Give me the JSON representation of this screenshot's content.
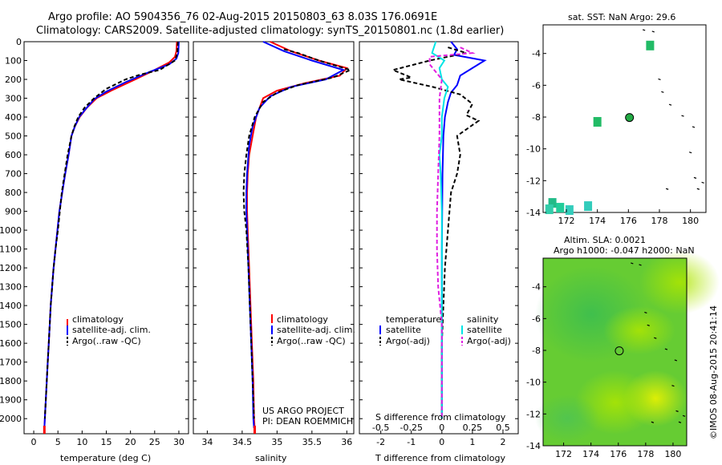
{
  "header": {
    "title_line1": "Argo profile: AO 5904356_76 02-Aug-2015 20150803_63 8.03S 176.0691E",
    "title_line2": "Climatology: CARS2009. Satellite-adjusted climatology: synTS_20150801.nc (1.8d earlier)"
  },
  "colors": {
    "climatology": "#ff0000",
    "satellite_adj": "#0000ff",
    "argo": "#000000",
    "salinity_satellite": "#00e5e5",
    "salinity_argo": "#e020e0"
  },
  "chart_data": [
    {
      "id": "temperature",
      "type": "line",
      "xlabel": "temperature (deg C)",
      "ylabel": "",
      "xlim": [
        -2,
        32
      ],
      "ylim": [
        2080,
        0
      ],
      "xticks": [
        0,
        5,
        10,
        15,
        20,
        25,
        30
      ],
      "yticks": [
        0,
        100,
        200,
        300,
        400,
        500,
        600,
        700,
        800,
        900,
        1000,
        1100,
        1200,
        1300,
        1400,
        1500,
        1600,
        1700,
        1800,
        1900,
        2000
      ],
      "legend": [
        "climatology",
        "satellite-adj. clim.",
        "Argo(..raw -QC)"
      ],
      "series": [
        {
          "name": "climatology",
          "color": "#ff0000",
          "dash": false,
          "points": [
            [
              29.6,
              0
            ],
            [
              29.5,
              50
            ],
            [
              29.2,
              80
            ],
            [
              28,
              110
            ],
            [
              25,
              150
            ],
            [
              21,
              200
            ],
            [
              16,
              260
            ],
            [
              13,
              300
            ],
            [
              11,
              350
            ],
            [
              9.5,
              400
            ],
            [
              8.5,
              450
            ],
            [
              7.8,
              500
            ],
            [
              7.2,
              600
            ],
            [
              6.5,
              700
            ],
            [
              5.9,
              800
            ],
            [
              5.3,
              900
            ],
            [
              4.9,
              1000
            ],
            [
              4.5,
              1100
            ],
            [
              4.1,
              1200
            ],
            [
              3.8,
              1300
            ],
            [
              3.5,
              1400
            ],
            [
              3.3,
              1500
            ],
            [
              3.1,
              1600
            ],
            [
              2.9,
              1700
            ],
            [
              2.7,
              1800
            ],
            [
              2.5,
              1900
            ],
            [
              2.3,
              2000
            ],
            [
              2.2,
              2050
            ]
          ]
        },
        {
          "name": "satellite-adj. clim.",
          "color": "#0000ff",
          "dash": false,
          "points": [
            [
              30,
              0
            ],
            [
              29.9,
              60
            ],
            [
              29.5,
              90
            ],
            [
              28,
              120
            ],
            [
              24,
              160
            ],
            [
              19,
              215
            ],
            [
              15,
              265
            ],
            [
              12.5,
              305
            ],
            [
              10.8,
              355
            ],
            [
              9.4,
              400
            ],
            [
              8.5,
              450
            ],
            [
              7.8,
              500
            ],
            [
              7.2,
              600
            ],
            [
              6.5,
              700
            ],
            [
              5.9,
              800
            ],
            [
              5.3,
              900
            ],
            [
              4.9,
              1000
            ],
            [
              4.5,
              1100
            ],
            [
              4.1,
              1200
            ],
            [
              3.8,
              1300
            ],
            [
              3.5,
              1400
            ],
            [
              3.3,
              1500
            ],
            [
              3.1,
              1600
            ],
            [
              2.9,
              1700
            ],
            [
              2.7,
              1800
            ],
            [
              2.5,
              1900
            ],
            [
              2.3,
              2000
            ],
            [
              2.2,
              2050
            ]
          ]
        },
        {
          "name": "Argo(..raw -QC)",
          "color": "#000000",
          "dash": true,
          "points": [
            [
              29.8,
              0
            ],
            [
              29.7,
              60
            ],
            [
              29.2,
              100
            ],
            [
              26,
              150
            ],
            [
              22,
              175
            ],
            [
              19,
              200
            ],
            [
              15,
              250
            ],
            [
              12.5,
              300
            ],
            [
              10.5,
              350
            ],
            [
              9.2,
              400
            ],
            [
              8.4,
              450
            ],
            [
              7.8,
              500
            ],
            [
              7.0,
              600
            ],
            [
              6.4,
              700
            ],
            [
              5.8,
              800
            ],
            [
              5.4,
              900
            ],
            [
              5.0,
              1000
            ],
            [
              4.5,
              1100
            ],
            [
              4.1,
              1200
            ],
            [
              3.8,
              1300
            ],
            [
              3.5,
              1400
            ],
            [
              3.3,
              1500
            ],
            [
              3.1,
              1600
            ],
            [
              2.9,
              1700
            ],
            [
              2.7,
              1800
            ],
            [
              2.5,
              1900
            ],
            [
              2.3,
              2000
            ]
          ]
        }
      ]
    },
    {
      "id": "salinity",
      "type": "line",
      "xlabel": "salinity",
      "ylabel": "",
      "xlim": [
        33.8,
        36.1
      ],
      "ylim": [
        2080,
        0
      ],
      "xticks": [
        34,
        34.5,
        35,
        35.5,
        36
      ],
      "xticklabels": [
        "34",
        "34.5",
        "35",
        "35.5",
        "36"
      ],
      "legend": [
        "climatology",
        "satellite-adj. clim.",
        "Argo(..raw -QC)"
      ],
      "annotation": [
        "US ARGO PROJECT",
        "PI: DEAN ROEMMICH"
      ],
      "series": [
        {
          "name": "climatology",
          "color": "#ff0000",
          "dash": false,
          "points": [
            [
              34.9,
              0
            ],
            [
              35.2,
              50
            ],
            [
              35.6,
              100
            ],
            [
              36.0,
              140
            ],
            [
              35.9,
              180
            ],
            [
              35.4,
              220
            ],
            [
              35.0,
              260
            ],
            [
              34.8,
              300
            ],
            [
              34.7,
              400
            ],
            [
              34.65,
              500
            ],
            [
              34.6,
              600
            ],
            [
              34.58,
              700
            ],
            [
              34.57,
              800
            ],
            [
              34.57,
              900
            ],
            [
              34.58,
              1000
            ],
            [
              34.6,
              1200
            ],
            [
              34.62,
              1400
            ],
            [
              34.64,
              1600
            ],
            [
              34.66,
              1800
            ],
            [
              34.67,
              2000
            ],
            [
              34.68,
              2050
            ]
          ]
        },
        {
          "name": "satellite-adj. clim.",
          "color": "#0000ff",
          "dash": false,
          "points": [
            [
              34.8,
              0
            ],
            [
              35.1,
              50
            ],
            [
              35.5,
              100
            ],
            [
              35.95,
              150
            ],
            [
              35.7,
              200
            ],
            [
              35.2,
              240
            ],
            [
              34.9,
              290
            ],
            [
              34.75,
              350
            ],
            [
              34.65,
              450
            ],
            [
              34.6,
              550
            ],
            [
              34.57,
              700
            ],
            [
              34.56,
              800
            ],
            [
              34.56,
              900
            ],
            [
              34.57,
              1000
            ],
            [
              34.59,
              1200
            ],
            [
              34.61,
              1400
            ],
            [
              34.63,
              1600
            ],
            [
              34.65,
              1800
            ],
            [
              34.66,
              2000
            ],
            [
              34.67,
              2050
            ]
          ]
        },
        {
          "name": "Argo(..raw -QC)",
          "color": "#000000",
          "dash": true,
          "points": [
            [
              35.1,
              40
            ],
            [
              35.3,
              60
            ],
            [
              35.6,
              100
            ],
            [
              36.05,
              150
            ],
            [
              35.8,
              190
            ],
            [
              35.3,
              230
            ],
            [
              35.0,
              270
            ],
            [
              34.8,
              320
            ],
            [
              34.68,
              400
            ],
            [
              34.6,
              500
            ],
            [
              34.56,
              600
            ],
            [
              34.53,
              700
            ],
            [
              34.52,
              800
            ],
            [
              34.53,
              900
            ],
            [
              34.56,
              1000
            ],
            [
              34.59,
              1200
            ],
            [
              34.61,
              1400
            ],
            [
              34.63,
              1600
            ],
            [
              34.65,
              1800
            ],
            [
              34.67,
              2000
            ]
          ]
        }
      ]
    },
    {
      "id": "difference",
      "type": "line",
      "xlabel": "T difference from climatology",
      "xlabel_top": "S difference from climatology",
      "xlim": [
        -2.7,
        2.5
      ],
      "ylim": [
        2080,
        0
      ],
      "xticks": [
        -2,
        -1,
        0,
        1,
        2
      ],
      "xticks_top": [
        -0.5,
        -0.25,
        0,
        0.25,
        0.5
      ],
      "xticklabels_top": [
        "-0.5",
        "-0.25",
        "0",
        "0.25",
        "0.5"
      ],
      "legend_temperature": [
        "temperature",
        "satellite",
        "Argo(-adj)"
      ],
      "legend_salinity": [
        "salinity",
        "satellite",
        "Argo(-adj)"
      ],
      "series": [
        {
          "name": "satellite",
          "color": "#0000ff",
          "dash": false,
          "axis": "T",
          "points": [
            [
              0.3,
              0
            ],
            [
              0.5,
              40
            ],
            [
              0.4,
              70
            ],
            [
              1.4,
              100
            ],
            [
              1.0,
              140
            ],
            [
              0.6,
              180
            ],
            [
              0.5,
              230
            ],
            [
              0.3,
              270
            ],
            [
              0.2,
              320
            ],
            [
              0.1,
              400
            ],
            [
              0.05,
              500
            ],
            [
              0.02,
              700
            ],
            [
              0.01,
              900
            ],
            [
              0,
              1100
            ],
            [
              0,
              1500
            ],
            [
              0,
              2000
            ]
          ]
        },
        {
          "name": "Argo(-adj)",
          "color": "#000000",
          "dash": true,
          "axis": "T",
          "points": [
            [
              0.2,
              30
            ],
            [
              0.8,
              60
            ],
            [
              -0.4,
              100
            ],
            [
              -1.6,
              150
            ],
            [
              -1.0,
              190
            ],
            [
              -1.4,
              200
            ],
            [
              -0.3,
              240
            ],
            [
              0.6,
              280
            ],
            [
              1.0,
              330
            ],
            [
              0.8,
              390
            ],
            [
              1.2,
              420
            ],
            [
              0.5,
              500
            ],
            [
              0.6,
              600
            ],
            [
              0.5,
              700
            ],
            [
              0.3,
              800
            ],
            [
              0.2,
              1000
            ],
            [
              0.1,
              1200
            ],
            [
              0.05,
              1400
            ],
            [
              0,
              1600
            ],
            [
              0,
              2000
            ]
          ]
        },
        {
          "name": "satellite",
          "color": "#00e5e5",
          "dash": false,
          "axis": "S",
          "points": [
            [
              -0.05,
              0
            ],
            [
              -0.08,
              60
            ],
            [
              0.02,
              100
            ],
            [
              -0.02,
              140
            ],
            [
              0,
              200
            ],
            [
              0.05,
              240
            ],
            [
              0.02,
              300
            ],
            [
              0,
              400
            ],
            [
              0,
              500
            ],
            [
              -0.02,
              600
            ],
            [
              -0.01,
              700
            ],
            [
              0,
              900
            ],
            [
              0,
              1200
            ],
            [
              0,
              1500
            ],
            [
              0,
              2000
            ]
          ]
        },
        {
          "name": "Argo(-adj)",
          "color": "#e020e0",
          "dash": true,
          "axis": "S",
          "points": [
            [
              0.15,
              30
            ],
            [
              0.25,
              60
            ],
            [
              -0.1,
              80
            ],
            [
              -0.1,
              120
            ],
            [
              0.0,
              200
            ],
            [
              -0.02,
              300
            ],
            [
              -0.02,
              500
            ],
            [
              -0.03,
              700
            ],
            [
              -0.04,
              900
            ],
            [
              -0.04,
              1100
            ],
            [
              -0.03,
              1300
            ],
            [
              0,
              1500
            ],
            [
              0,
              2000
            ]
          ]
        }
      ]
    },
    {
      "id": "sst-map",
      "type": "scatter",
      "title": "sat. SST: NaN Argo: 29.6",
      "xlim": [
        170.5,
        181
      ],
      "ylim": [
        -14,
        -2.2
      ],
      "xticks": [
        172,
        174,
        176,
        178,
        180
      ],
      "yticks": [
        -4,
        -6,
        -8,
        -10,
        -12,
        -14
      ],
      "argo_position": [
        176.07,
        -8.03
      ],
      "squares": [
        {
          "lon": 177.4,
          "lat": -3.5,
          "color": "#22bb66"
        },
        {
          "lon": 174.0,
          "lat": -8.3,
          "color": "#22bb66"
        },
        {
          "lon": 171.1,
          "lat": -13.4,
          "color": "#22bb88"
        },
        {
          "lon": 171.6,
          "lat": -13.7,
          "color": "#22cc99"
        },
        {
          "lon": 170.9,
          "lat": -13.8,
          "color": "#33ccaa"
        },
        {
          "lon": 172.2,
          "lat": -13.85,
          "color": "#33ccbb"
        },
        {
          "lon": 173.4,
          "lat": -13.6,
          "color": "#33ccbb"
        }
      ]
    },
    {
      "id": "sla-map",
      "type": "heatmap",
      "title_line1": "Altim. SLA: 0.0021",
      "title_line2": "Argo h1000: -0.047 h2000: NaN",
      "xlim": [
        170.5,
        181
      ],
      "ylim": [
        -14,
        -2.2
      ],
      "xticks": [
        172,
        174,
        176,
        178,
        180
      ],
      "yticks": [
        -4,
        -6,
        -8,
        -10,
        -12,
        -14
      ],
      "argo_position": [
        176.07,
        -8.03
      ]
    }
  ],
  "side_stamp": "©IMOS 08-Aug-2015 20:41:14"
}
